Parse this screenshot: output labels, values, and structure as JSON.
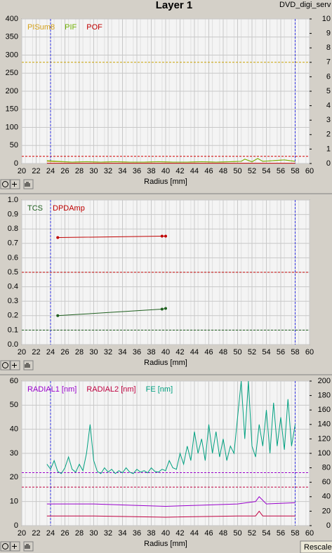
{
  "header": {
    "title": "Layer 1",
    "file": "DVD_digi_serv"
  },
  "rescale_button": "Rescale",
  "chart_data": [
    {
      "type": "line",
      "xlabel": "Radius [mm]",
      "grid": true,
      "xlim": [
        20,
        60
      ],
      "xticks": [
        20,
        22,
        24,
        26,
        28,
        30,
        32,
        34,
        36,
        38,
        40,
        42,
        44,
        46,
        48,
        50,
        52,
        54,
        56,
        58,
        60
      ],
      "ylim": [
        0,
        400
      ],
      "yticks": [
        0,
        50,
        100,
        150,
        200,
        250,
        300,
        350,
        400
      ],
      "y2lim": [
        0,
        10
      ],
      "y2ticks": [
        0,
        1,
        2,
        3,
        4,
        5,
        6,
        7,
        8,
        9,
        10
      ],
      "vlines": [
        24,
        58
      ],
      "hlines": [
        {
          "value": 280,
          "color": "#c8a000",
          "axis": "y"
        },
        {
          "value": 20,
          "color": "#d00000",
          "axis": "y"
        }
      ],
      "series": [
        {
          "name": "PISum8",
          "color": "#d4a017",
          "axis": "y",
          "x": [
            23.5,
            25,
            27,
            29,
            31,
            33,
            35,
            37,
            39,
            41,
            43,
            45,
            47,
            49,
            50.5,
            51,
            52,
            52.8,
            53.5,
            55,
            56.5,
            58
          ],
          "values": [
            6,
            5,
            4,
            5,
            4,
            5,
            4,
            4,
            5,
            4,
            4,
            5,
            4,
            5,
            6,
            12,
            5,
            14,
            6,
            8,
            10,
            6
          ]
        },
        {
          "name": "PIF",
          "color": "#70b000",
          "axis": "y2",
          "x": [
            23.5,
            25,
            27,
            29,
            31,
            33,
            35,
            37,
            39,
            41,
            43,
            45,
            47,
            49,
            50.5,
            51,
            52,
            52.8,
            53.5,
            55,
            56.5,
            58
          ],
          "values": [
            0.2,
            0.15,
            0.1,
            0.12,
            0.1,
            0.12,
            0.1,
            0.1,
            0.12,
            0.1,
            0.1,
            0.12,
            0.1,
            0.12,
            0.15,
            0.3,
            0.12,
            0.35,
            0.15,
            0.2,
            0.25,
            0.15
          ]
        },
        {
          "name": "POF",
          "color": "#c00000",
          "axis": "y2",
          "x": [
            23.5,
            58
          ],
          "values": [
            0.02,
            0.02
          ]
        }
      ]
    },
    {
      "type": "line",
      "xlabel": "Radius [mm]",
      "grid": true,
      "markers": true,
      "xlim": [
        20,
        60
      ],
      "xticks": [
        20,
        22,
        24,
        26,
        28,
        30,
        32,
        34,
        36,
        38,
        40,
        42,
        44,
        46,
        48,
        50,
        52,
        54,
        56,
        58,
        60
      ],
      "ylim": [
        0,
        1
      ],
      "yticks": [
        {
          "value": 0,
          "label": "0.0"
        },
        0.1,
        0.2,
        0.3,
        0.4,
        0.5,
        0.6,
        0.7,
        0.8,
        0.9,
        {
          "value": 1,
          "label": "1.0"
        }
      ],
      "vlines": [
        24,
        58
      ],
      "hlines": [
        {
          "value": 0.5,
          "color": "#c00000",
          "axis": "y"
        },
        {
          "value": 0.1,
          "color": "#206020",
          "axis": "y"
        }
      ],
      "series": [
        {
          "name": "TCS",
          "color": "#206020",
          "axis": "y",
          "x": [
            25,
            39.5,
            40
          ],
          "values": [
            0.2,
            0.245,
            0.25
          ]
        },
        {
          "name": "DPDAmp",
          "color": "#c00000",
          "axis": "y",
          "x": [
            25,
            39.5,
            40
          ],
          "values": [
            0.74,
            0.75,
            0.75
          ]
        }
      ]
    },
    {
      "type": "line",
      "xlabel": "Radius [mm]",
      "grid": true,
      "xlim": [
        20,
        60
      ],
      "xticks": [
        20,
        22,
        24,
        26,
        28,
        30,
        32,
        34,
        36,
        38,
        40,
        42,
        44,
        46,
        48,
        50,
        52,
        54,
        56,
        58,
        60
      ],
      "ylim": [
        0,
        60
      ],
      "yticks": [
        0,
        10,
        20,
        30,
        40,
        50,
        60
      ],
      "y2lim": [
        0,
        200
      ],
      "y2ticks": [
        0,
        20,
        40,
        60,
        80,
        100,
        120,
        140,
        160,
        180,
        200
      ],
      "vlines": [
        24,
        58
      ],
      "hlines": [
        {
          "value": 22,
          "color": "#9900cc",
          "axis": "y"
        },
        {
          "value": 16,
          "color": "#c00040",
          "axis": "y"
        }
      ],
      "series": [
        {
          "name": "RADIAL1 [nm]",
          "color": "#9900cc",
          "axis": "y",
          "x": [
            23.5,
            30,
            35,
            40,
            45,
            50,
            52.5,
            53,
            54,
            58
          ],
          "values": [
            9,
            9,
            8.5,
            8,
            8.5,
            9,
            10,
            12,
            9,
            9.5
          ]
        },
        {
          "name": "RADIAL2 [nm]",
          "color": "#c00040",
          "axis": "y",
          "x": [
            23.5,
            30,
            40,
            50,
            52.5,
            53,
            53.5,
            58
          ],
          "values": [
            4,
            4,
            3.5,
            4,
            4,
            6,
            4,
            4
          ]
        },
        {
          "name": "FE [nm]",
          "color": "#00a080",
          "axis": "y2",
          "x": [
            23.5,
            24,
            24.5,
            25,
            25.5,
            26,
            26.5,
            27,
            27.5,
            28,
            28.5,
            29,
            29.5,
            30,
            30.5,
            31,
            31.5,
            32,
            32.5,
            33,
            33.5,
            34,
            34.5,
            35,
            35.5,
            36,
            36.5,
            37,
            37.5,
            38,
            38.5,
            39,
            39.5,
            40,
            40.5,
            41,
            41.5,
            42,
            42.5,
            43,
            43.5,
            44,
            44.5,
            45,
            45.5,
            46,
            46.5,
            47,
            47.5,
            48,
            48.5,
            49,
            49.5,
            50,
            50.5,
            51,
            51.5,
            52,
            52.5,
            53,
            53.5,
            54,
            54.5,
            55,
            55.5,
            56,
            56.5,
            57,
            57.5,
            58
          ],
          "values": [
            85,
            78,
            90,
            75,
            72,
            80,
            95,
            78,
            74,
            85,
            76,
            100,
            140,
            90,
            75,
            72,
            80,
            74,
            78,
            72,
            76,
            73,
            80,
            74,
            72,
            78,
            74,
            76,
            73,
            80,
            75,
            74,
            78,
            76,
            90,
            80,
            78,
            100,
            85,
            110,
            90,
            130,
            100,
            120,
            90,
            140,
            100,
            130,
            95,
            120,
            90,
            110,
            100,
            150,
            200,
            120,
            200,
            110,
            95,
            140,
            110,
            160,
            100,
            170,
            110,
            150,
            105,
            175,
            110,
            140
          ]
        }
      ]
    }
  ]
}
